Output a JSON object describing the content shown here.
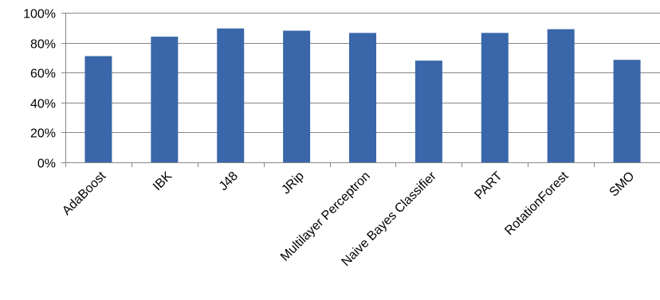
{
  "chart_data": {
    "type": "bar",
    "categories": [
      "AdaBoost",
      "IBK",
      "J48",
      "JRip",
      "Multilayer Perceptron",
      "Naive Bayes Classifier",
      "PART",
      "RotationForest",
      "SMO"
    ],
    "values": [
      71,
      84,
      89.5,
      88,
      86.5,
      68,
      86.5,
      89,
      68.5
    ],
    "ylim": [
      0,
      100
    ],
    "yticks": [
      0,
      20,
      40,
      60,
      80,
      100
    ],
    "ytick_labels": [
      "0%",
      "20%",
      "40%",
      "60%",
      "80%",
      "100%"
    ],
    "title": "",
    "xlabel": "",
    "ylabel": "",
    "grid": true,
    "legend": "none",
    "bar_color": "#3A67A9",
    "grid_color": "#878787",
    "axis_color": "#878787"
  }
}
